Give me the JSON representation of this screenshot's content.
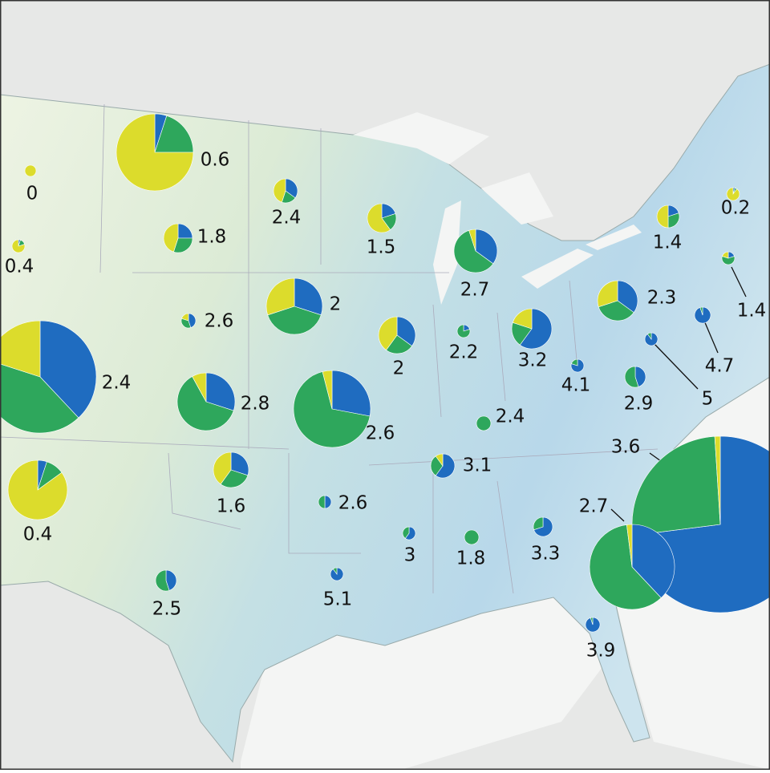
{
  "map": {
    "colors": [
      "#1f6cc0",
      "#2ea75c",
      "#dcdc2c"
    ],
    "pies": [
      {
        "label": 0,
        "shares": [
          0,
          0,
          100
        ]
      },
      {
        "label": 0.6,
        "shares": [
          5,
          20,
          75
        ]
      },
      {
        "label": 0.4,
        "shares": [
          5,
          15,
          80
        ]
      },
      {
        "label": 1.8,
        "shares": [
          25,
          30,
          45
        ]
      },
      {
        "label": 2.4,
        "shares": [
          35,
          20,
          45
        ]
      },
      {
        "label": 1.5,
        "shares": [
          20,
          20,
          60
        ]
      },
      {
        "label": 2.7,
        "shares": [
          35,
          60,
          5
        ]
      },
      {
        "label": 2,
        "shares": [
          30,
          40,
          30
        ]
      },
      {
        "label": 2.6,
        "shares": [
          45,
          35,
          20
        ]
      },
      {
        "label": 2.4,
        "shares": [
          38,
          42,
          20
        ]
      },
      {
        "label": 2,
        "shares": [
          35,
          25,
          40
        ]
      },
      {
        "label": 2.2,
        "shares": [
          20,
          80,
          0
        ]
      },
      {
        "label": 3.2,
        "shares": [
          60,
          20,
          20
        ]
      },
      {
        "label": 2.3,
        "shares": [
          35,
          35,
          30
        ]
      },
      {
        "label": 4.7,
        "shares": [
          95,
          5,
          0
        ]
      },
      {
        "label": 5,
        "shares": [
          90,
          10,
          0
        ]
      },
      {
        "label": 4.1,
        "shares": [
          80,
          20,
          0
        ]
      },
      {
        "label": 2.9,
        "shares": [
          45,
          55,
          0
        ]
      },
      {
        "label": 2.8,
        "shares": [
          30,
          62,
          8
        ]
      },
      {
        "label": 2.6,
        "shares": [
          28,
          68,
          4
        ]
      },
      {
        "label": 2.4,
        "shares": [
          0,
          100,
          0
        ]
      },
      {
        "label": 3.1,
        "shares": [
          60,
          30,
          10
        ]
      },
      {
        "label": 3.6,
        "shares": [
          73,
          26,
          1
        ]
      },
      {
        "label": 2.7,
        "shares": [
          38,
          60,
          2
        ]
      },
      {
        "label": 1.6,
        "shares": [
          30,
          30,
          40
        ]
      },
      {
        "label": 0.4,
        "shares": [
          5,
          10,
          85
        ]
      },
      {
        "label": 2.6,
        "shares": [
          50,
          50,
          0
        ]
      },
      {
        "label": 3,
        "shares": [
          60,
          40,
          0
        ]
      },
      {
        "label": 1.8,
        "shares": [
          0,
          100,
          0
        ]
      },
      {
        "label": 3.3,
        "shares": [
          70,
          30,
          0
        ]
      },
      {
        "label": 2.5,
        "shares": [
          45,
          55,
          0
        ]
      },
      {
        "label": 5.1,
        "shares": [
          90,
          10,
          0
        ]
      },
      {
        "label": 3.9,
        "shares": [
          95,
          5,
          0
        ]
      },
      {
        "label": 1.4,
        "shares": [
          20,
          30,
          50
        ]
      },
      {
        "label": 0.2,
        "shares": [
          5,
          5,
          90
        ]
      },
      {
        "label": 1.4,
        "shares": [
          20,
          60,
          20
        ]
      }
    ]
  }
}
